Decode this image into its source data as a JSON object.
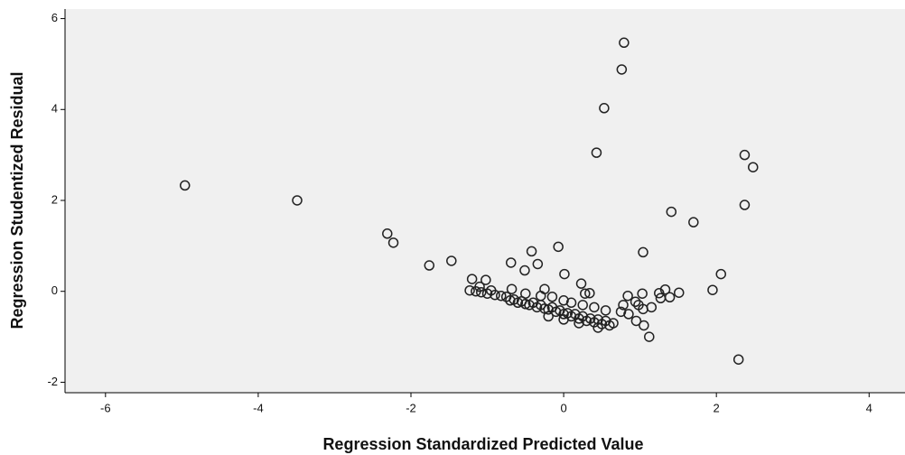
{
  "chart_data": {
    "type": "scatter",
    "x_label": "Regression Standardized Predicted Value",
    "y_label": "Regression Studentized Residual",
    "xlim": [
      -6.53,
      4.47
    ],
    "ylim": [
      -2.23,
      6.21
    ],
    "xticks": [
      -6,
      -4,
      -2,
      0,
      2,
      4
    ],
    "yticks": [
      -2,
      0,
      2,
      4,
      6
    ],
    "color": "#222222",
    "x": [
      -4.96,
      -3.49,
      -2.31,
      -2.23,
      -1.76,
      -1.47,
      0.79,
      0.76,
      0.53,
      0.43,
      2.37,
      2.48,
      2.37,
      1.41,
      1.7,
      1.04,
      2.06,
      1.95,
      2.29,
      1.12,
      -0.42,
      -0.07,
      -0.34,
      -0.69,
      -0.51,
      0.01,
      -1.2,
      -1.02,
      0.23,
      0.34,
      1.33,
      1.51,
      1.25,
      1.03,
      1.39,
      1.27,
      0.94,
      0.98,
      1.04,
      1.15,
      0.84,
      -1.23,
      -1.15,
      -1.08,
      -1.0,
      -0.95,
      -0.9,
      -0.82,
      -0.75,
      -0.7,
      -0.65,
      -0.6,
      -0.55,
      -0.5,
      -0.45,
      -0.4,
      -0.35,
      -0.3,
      -0.25,
      -0.2,
      -0.15,
      -0.1,
      -0.05,
      0.0,
      0.05,
      0.1,
      0.15,
      0.2,
      0.25,
      0.3,
      0.35,
      0.4,
      0.45,
      0.5,
      0.55,
      0.6,
      0.65,
      -0.68,
      -0.5,
      -0.3,
      -0.15,
      0.0,
      0.1,
      0.25,
      0.4,
      0.55,
      -0.2,
      0.0,
      0.2,
      0.45,
      -1.1,
      -0.25,
      0.28,
      0.75,
      0.85,
      0.95,
      1.05,
      0.78
    ],
    "y": [
      2.33,
      2.0,
      1.27,
      1.07,
      0.57,
      0.67,
      5.47,
      4.88,
      4.03,
      3.05,
      3.0,
      2.73,
      1.9,
      1.75,
      1.52,
      0.86,
      0.38,
      0.03,
      -1.5,
      -1.0,
      0.88,
      0.98,
      0.6,
      0.63,
      0.46,
      0.38,
      0.27,
      0.25,
      0.17,
      -0.04,
      0.04,
      -0.03,
      -0.04,
      -0.05,
      -0.13,
      -0.15,
      -0.23,
      -0.3,
      -0.39,
      -0.35,
      -0.1,
      0.02,
      0.0,
      -0.02,
      -0.05,
      0.02,
      -0.08,
      -0.1,
      -0.12,
      -0.2,
      -0.18,
      -0.25,
      -0.22,
      -0.28,
      -0.3,
      -0.25,
      -0.35,
      -0.3,
      -0.38,
      -0.4,
      -0.35,
      -0.45,
      -0.42,
      -0.5,
      -0.48,
      -0.55,
      -0.5,
      -0.6,
      -0.55,
      -0.65,
      -0.6,
      -0.68,
      -0.62,
      -0.72,
      -0.65,
      -0.75,
      -0.7,
      0.05,
      -0.05,
      -0.1,
      -0.12,
      -0.2,
      -0.25,
      -0.3,
      -0.35,
      -0.42,
      -0.55,
      -0.62,
      -0.7,
      -0.8,
      0.1,
      0.05,
      -0.05,
      -0.45,
      -0.5,
      -0.65,
      -0.75,
      -0.3
    ]
  }
}
